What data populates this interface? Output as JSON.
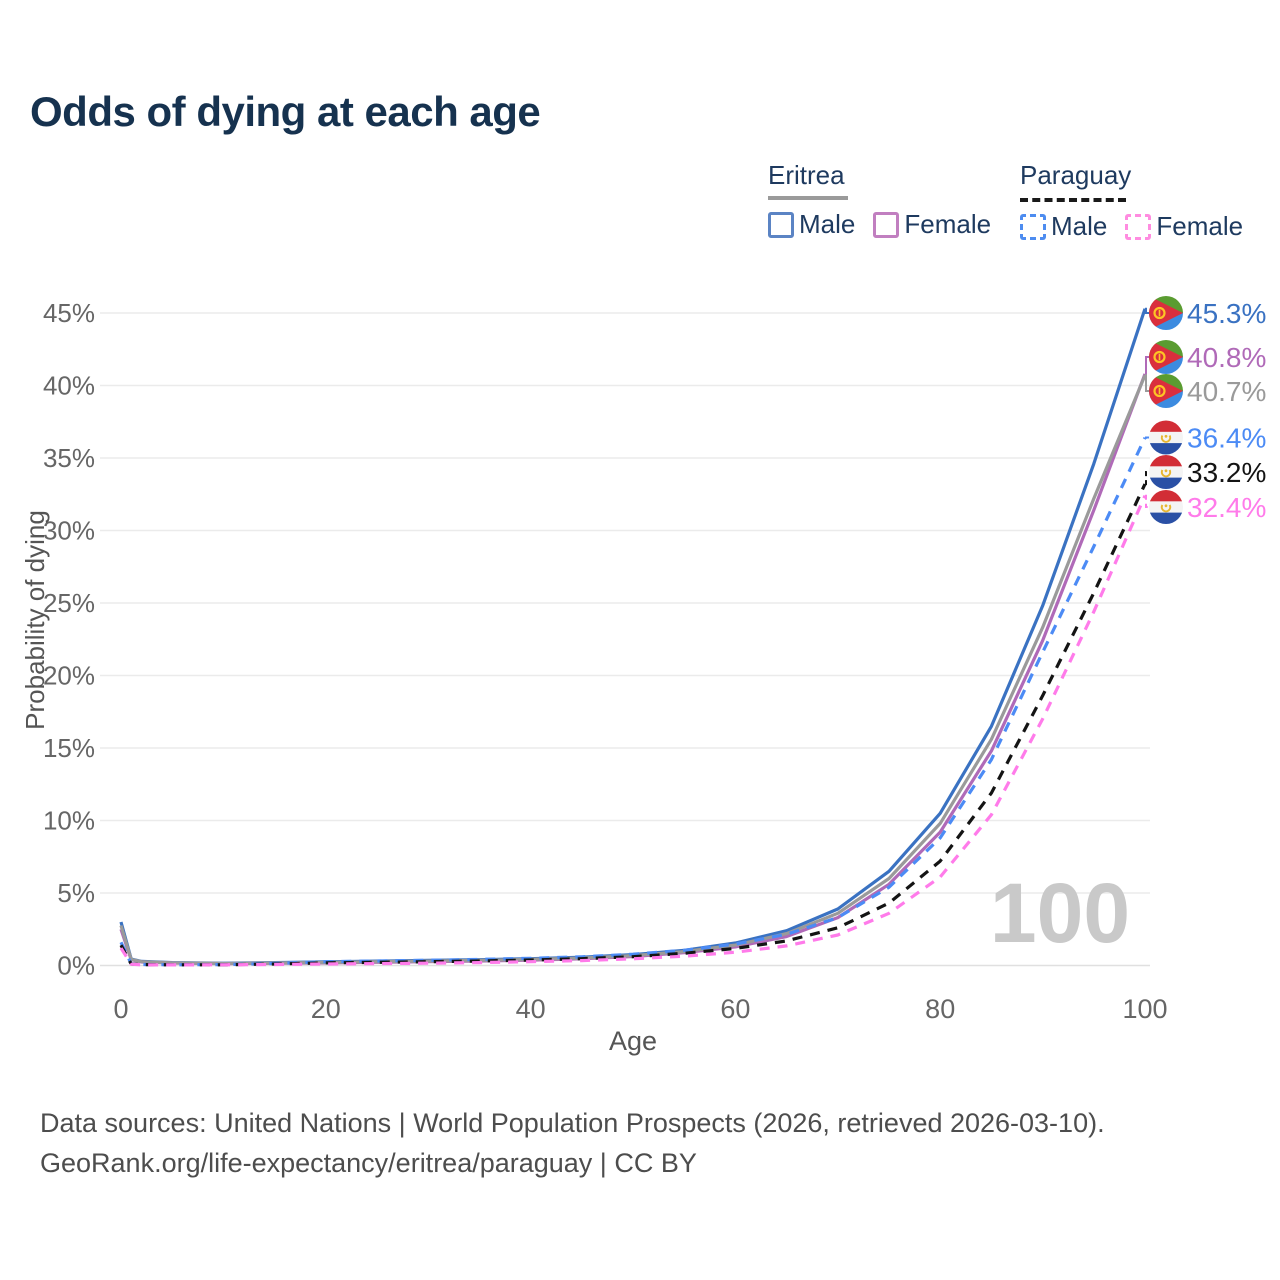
{
  "title": "Odds of dying at each age",
  "legend": {
    "eritrea": {
      "label": "Eritrea",
      "male": "Male",
      "female": "Female",
      "line_color": "#9a9a9a",
      "male_color": "#5b84c4",
      "female_color": "#c17fc0"
    },
    "paraguay": {
      "label": "Paraguay",
      "male": "Male",
      "female": "Female",
      "line_color": "#1a1a1a",
      "male_color": "#4d8cf0",
      "female_color": "#ff8ce0"
    }
  },
  "footer": {
    "line1": "Data sources: United Nations | World Population Prospects (2026, retrieved 2026-03-10).",
    "line2": "GeoRank.org/life-expectancy/eritrea/paraguay | CC BY"
  },
  "chart_data": {
    "type": "line",
    "title": "Odds of dying at each age",
    "xlabel": "Age",
    "ylabel": "Probability of dying",
    "xlim": [
      0,
      100
    ],
    "ylim_percent": [
      0,
      46
    ],
    "xticks": [
      0,
      20,
      40,
      60,
      80,
      100
    ],
    "yticks": [
      "0%",
      "5%",
      "10%",
      "15%",
      "20%",
      "25%",
      "30%",
      "35%",
      "40%",
      "45%"
    ],
    "grid": "horizontal",
    "legend_position": "top-right",
    "watermark": "100",
    "ages": [
      0,
      1,
      2,
      5,
      10,
      15,
      20,
      25,
      30,
      35,
      40,
      45,
      50,
      55,
      60,
      65,
      70,
      75,
      80,
      85,
      90,
      95,
      100
    ],
    "series": [
      {
        "id": "eritrea-male",
        "country": "Eritrea",
        "sex": "Male",
        "style": "solid",
        "color": "#3a72c2",
        "flag": "eritrea-flag-icon",
        "end_label": "45.3%",
        "end_value": 45.3,
        "values": [
          3.0,
          0.45,
          0.28,
          0.2,
          0.16,
          0.2,
          0.25,
          0.3,
          0.35,
          0.4,
          0.47,
          0.57,
          0.75,
          1.05,
          1.55,
          2.4,
          3.9,
          6.5,
          10.5,
          16.5,
          24.8,
          34.6,
          45.3
        ]
      },
      {
        "id": "eritrea-female",
        "country": "Eritrea",
        "sex": "Female",
        "style": "solid",
        "color": "#b06ab8",
        "flag": "eritrea-flag-icon",
        "end_label": "40.8%",
        "end_value": 40.8,
        "values": [
          2.5,
          0.4,
          0.24,
          0.17,
          0.13,
          0.15,
          0.18,
          0.22,
          0.26,
          0.31,
          0.37,
          0.46,
          0.62,
          0.88,
          1.28,
          2.0,
          3.3,
          5.6,
          9.2,
          14.8,
          22.4,
          31.4,
          40.8
        ]
      },
      {
        "id": "eritrea-both",
        "country": "Eritrea",
        "sex": "Both",
        "style": "solid",
        "color": "#9a9a9a",
        "flag": "eritrea-flag-icon",
        "end_label": "40.7%",
        "end_value": 40.7,
        "values": [
          2.75,
          0.42,
          0.26,
          0.18,
          0.14,
          0.17,
          0.21,
          0.26,
          0.3,
          0.35,
          0.42,
          0.51,
          0.68,
          0.96,
          1.41,
          2.2,
          3.6,
          6.0,
          9.8,
          15.6,
          23.3,
          32.2,
          40.7
        ]
      },
      {
        "id": "paraguay-male",
        "country": "Paraguay",
        "sex": "Male",
        "style": "dashed",
        "color": "#4c8bf5",
        "flag": "paraguay-flag-icon",
        "end_label": "36.4%",
        "end_value": 36.4,
        "values": [
          1.6,
          0.12,
          0.07,
          0.05,
          0.06,
          0.14,
          0.26,
          0.31,
          0.36,
          0.42,
          0.5,
          0.6,
          0.78,
          1.05,
          1.48,
          2.15,
          3.3,
          5.4,
          8.8,
          14.2,
          21.6,
          28.9,
          36.4
        ]
      },
      {
        "id": "paraguay-both",
        "country": "Paraguay",
        "sex": "Both",
        "style": "dashed",
        "color": "#141414",
        "flag": "paraguay-flag-icon",
        "end_label": "33.2%",
        "end_value": 33.2,
        "values": [
          1.4,
          0.1,
          0.06,
          0.045,
          0.05,
          0.1,
          0.18,
          0.22,
          0.26,
          0.31,
          0.38,
          0.47,
          0.61,
          0.84,
          1.18,
          1.7,
          2.6,
          4.3,
          7.2,
          11.9,
          18.6,
          25.7,
          33.2
        ]
      },
      {
        "id": "paraguay-female",
        "country": "Paraguay",
        "sex": "Female",
        "style": "dashed",
        "color": "#ff7bea",
        "flag": "paraguay-flag-icon",
        "end_label": "32.4%",
        "end_value": 32.4,
        "values": [
          1.2,
          0.09,
          0.05,
          0.04,
          0.045,
          0.07,
          0.1,
          0.13,
          0.16,
          0.2,
          0.26,
          0.34,
          0.46,
          0.64,
          0.92,
          1.35,
          2.1,
          3.6,
          6.1,
          10.4,
          17.0,
          24.4,
          32.4
        ]
      }
    ]
  }
}
